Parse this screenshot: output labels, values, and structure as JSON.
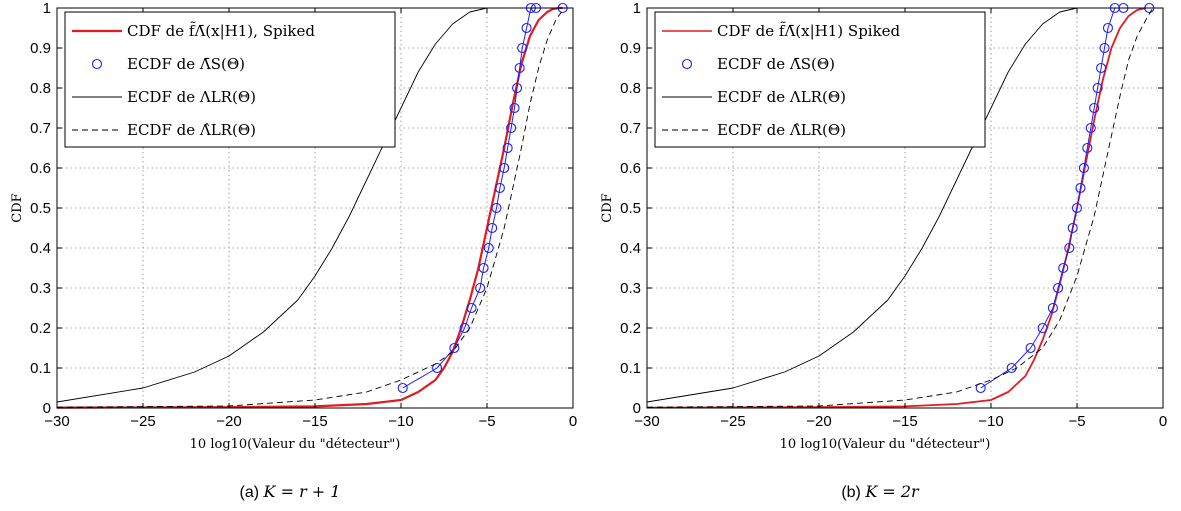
{
  "chart_data": [
    {
      "type": "line",
      "caption": {
        "tag": "(a)",
        "math": "K = r + 1"
      },
      "xlabel": "10 log10(Valeur du \"détecteur\")",
      "ylabel": "CDF",
      "xlim": [
        -30,
        0
      ],
      "ylim": [
        0,
        1
      ],
      "x_ticks": [
        "-30",
        "-25",
        "-20",
        "-15",
        "-10",
        "-5",
        "0"
      ],
      "y_ticks": [
        "0",
        "0.1",
        "0.2",
        "0.3",
        "0.4",
        "0.5",
        "0.6",
        "0.7",
        "0.8",
        "0.9",
        "1"
      ],
      "grid": true,
      "legend_position": "top-left",
      "series": [
        {
          "name": "CDF de f̃Λ̄(x|H1), Spiked",
          "color": "#e41a1c",
          "style": "solid-thick",
          "x": [
            -30,
            -20,
            -15,
            -12,
            -10,
            -9,
            -8,
            -7.5,
            -7,
            -6.5,
            -6,
            -5.5,
            -5,
            -4.5,
            -4,
            -3.5,
            -3,
            -2.5,
            -2,
            -1.5,
            -1.2,
            -0.8,
            -0.6
          ],
          "y": [
            0.001,
            0.002,
            0.004,
            0.01,
            0.02,
            0.04,
            0.07,
            0.1,
            0.14,
            0.2,
            0.27,
            0.35,
            0.45,
            0.55,
            0.65,
            0.76,
            0.86,
            0.93,
            0.97,
            0.99,
            0.997,
            1,
            1
          ]
        },
        {
          "name": "ECDF de Λ̄S(Θ)",
          "color": "#1f1fff",
          "style": "circles",
          "x": [
            -9.9,
            -7.9,
            -6.9,
            -6.3,
            -5.9,
            -5.4,
            -5.2,
            -4.9,
            -4.7,
            -4.45,
            -4.25,
            -4.0,
            -3.8,
            -3.6,
            -3.4,
            -3.25,
            -3.1,
            -2.95,
            -2.7,
            -2.45,
            -2.15,
            -0.6
          ],
          "y": [
            0.05,
            0.1,
            0.15,
            0.2,
            0.25,
            0.3,
            0.35,
            0.4,
            0.45,
            0.5,
            0.55,
            0.6,
            0.65,
            0.7,
            0.75,
            0.8,
            0.85,
            0.9,
            0.95,
            1,
            1,
            1
          ]
        },
        {
          "name": "ECDF de ΛLR(Θ)",
          "color": "#000000",
          "style": "solid-thin",
          "x": [
            -30,
            -25,
            -22,
            -20,
            -18,
            -16,
            -15,
            -14,
            -13,
            -12,
            -11,
            -10,
            -9,
            -8,
            -7,
            -6,
            -5
          ],
          "y": [
            0.015,
            0.05,
            0.09,
            0.13,
            0.19,
            0.27,
            0.33,
            0.4,
            0.48,
            0.57,
            0.66,
            0.75,
            0.84,
            0.91,
            0.96,
            0.99,
            1
          ]
        },
        {
          "name": "ECDF de Λ̂LR(Θ)",
          "color": "#000000",
          "style": "dashed",
          "x": [
            -30,
            -20,
            -15,
            -12,
            -10,
            -8,
            -7,
            -6,
            -5,
            -4,
            -3.5,
            -3,
            -2.5,
            -2,
            -1.5,
            -1,
            -0.5
          ],
          "y": [
            0.002,
            0.005,
            0.02,
            0.04,
            0.07,
            0.11,
            0.14,
            0.2,
            0.3,
            0.45,
            0.55,
            0.65,
            0.76,
            0.85,
            0.92,
            0.97,
            1
          ]
        }
      ]
    },
    {
      "type": "line",
      "caption": {
        "tag": "(b)",
        "math": "K = 2r"
      },
      "xlabel": "10 log10(Valeur du \"détecteur\")",
      "ylabel": "CDF",
      "xlim": [
        -30,
        0
      ],
      "ylim": [
        0,
        1
      ],
      "x_ticks": [
        "-30",
        "-25",
        "-20",
        "-15",
        "-10",
        "-5",
        "0"
      ],
      "y_ticks": [
        "0",
        "0.1",
        "0.2",
        "0.3",
        "0.4",
        "0.5",
        "0.6",
        "0.7",
        "0.8",
        "0.9",
        "1"
      ],
      "grid": true,
      "legend_position": "top-left",
      "series": [
        {
          "name": "CDF de f̃Λ̄(x|H1) Spiked",
          "color": "#e41a1c",
          "style": "solid-thin",
          "x": [
            -30,
            -20,
            -15,
            -12,
            -10,
            -9,
            -8.5,
            -8,
            -7.5,
            -7,
            -6.5,
            -6,
            -5.5,
            -5,
            -4.5,
            -4,
            -3.5,
            -3,
            -2.5,
            -2,
            -1.5,
            -1
          ],
          "y": [
            0.001,
            0.002,
            0.004,
            0.01,
            0.02,
            0.04,
            0.06,
            0.08,
            0.12,
            0.17,
            0.23,
            0.31,
            0.4,
            0.5,
            0.61,
            0.72,
            0.82,
            0.9,
            0.95,
            0.98,
            0.995,
            1
          ]
        },
        {
          "name": "ECDF de Λ̄S(Θ)",
          "color": "#1f1fff",
          "style": "circles",
          "x": [
            -10.6,
            -8.8,
            -7.7,
            -7.0,
            -6.4,
            -6.1,
            -5.8,
            -5.45,
            -5.25,
            -5.0,
            -4.8,
            -4.6,
            -4.4,
            -4.2,
            -4.0,
            -3.8,
            -3.6,
            -3.4,
            -3.2,
            -2.8,
            -2.3,
            -0.8
          ],
          "y": [
            0.05,
            0.1,
            0.15,
            0.2,
            0.25,
            0.3,
            0.35,
            0.4,
            0.45,
            0.5,
            0.55,
            0.6,
            0.65,
            0.7,
            0.75,
            0.8,
            0.85,
            0.9,
            0.95,
            1,
            1,
            1
          ]
        },
        {
          "name": "ECDF de ΛLR(Θ)",
          "color": "#000000",
          "style": "solid-thin",
          "x": [
            -30,
            -25,
            -22,
            -20,
            -18,
            -16,
            -15,
            -14,
            -13,
            -12,
            -11,
            -10,
            -9,
            -8,
            -7,
            -6,
            -5
          ],
          "y": [
            0.015,
            0.05,
            0.09,
            0.13,
            0.19,
            0.27,
            0.33,
            0.4,
            0.48,
            0.57,
            0.66,
            0.75,
            0.84,
            0.91,
            0.96,
            0.99,
            1
          ]
        },
        {
          "name": "ECDF de Λ̂LR(Θ)",
          "color": "#000000",
          "style": "dashed",
          "x": [
            -30,
            -20,
            -15,
            -12,
            -10,
            -8.5,
            -7,
            -6,
            -5,
            -4,
            -3.5,
            -3,
            -2.5,
            -2,
            -1.5,
            -1,
            -0.6
          ],
          "y": [
            0.002,
            0.005,
            0.02,
            0.04,
            0.07,
            0.1,
            0.15,
            0.22,
            0.33,
            0.48,
            0.58,
            0.68,
            0.78,
            0.87,
            0.93,
            0.97,
            1
          ]
        }
      ]
    }
  ]
}
